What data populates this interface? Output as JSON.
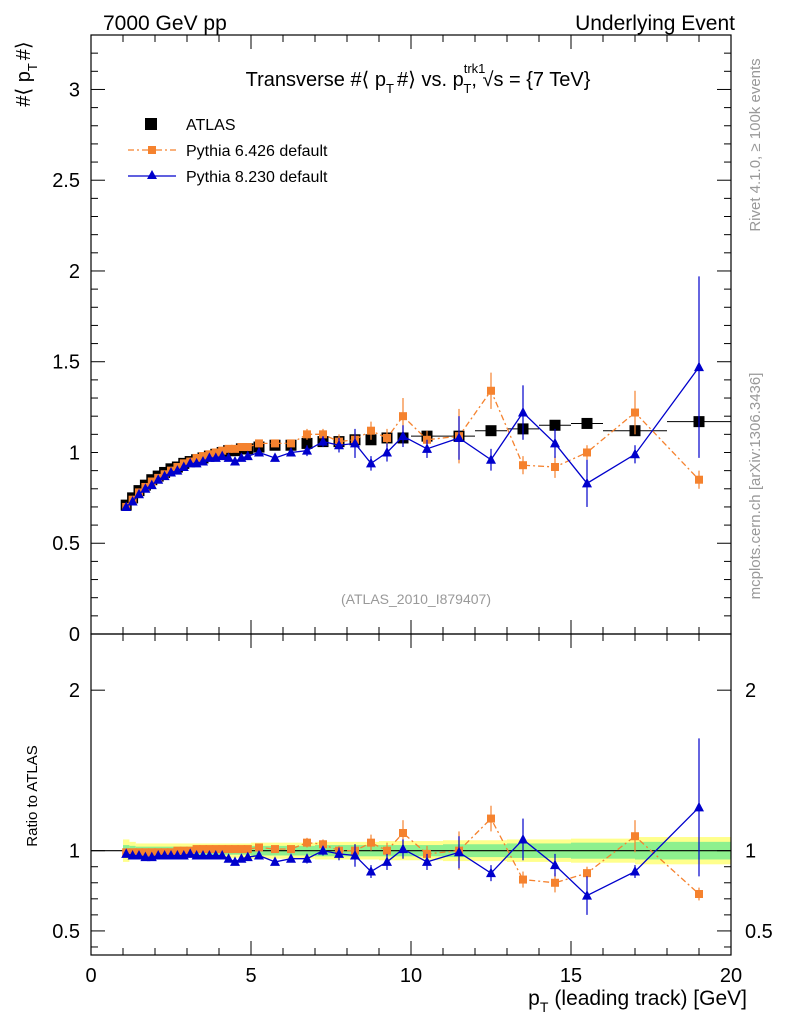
{
  "header": {
    "left": "7000 GeV pp",
    "right": "Underlying Event"
  },
  "side_labels": {
    "rivet": "Rivet 4.1.0, ≥ 100k events",
    "mcplots": "mcplots.cern.ch [arXiv:1306.3436]"
  },
  "colors": {
    "atlas": "#000000",
    "pythia6": "#f5822e",
    "pythia8": "#0000cc",
    "band_inner": "#8ef08e",
    "band_outer": "#ffff8c",
    "axes": "#000000",
    "watermark": "#999999"
  },
  "chart_data": [
    {
      "type": "scatter",
      "panel": "main",
      "title": "Transverse #⟨ p_T #⟩ vs. p_T^trk1, √s = {7 TeV}",
      "title_parts": {
        "a": "Transverse #⟨ p",
        "b": "#⟩ vs. p",
        "c": ", ",
        "d": "s = {7 TeV}",
        "sub": "T",
        "sup": "trk1"
      },
      "ylabel": "#⟨ p_T #⟩",
      "ylabel_parts": {
        "a": "#⟨ p",
        "b": "#⟩",
        "sub": "T"
      },
      "xlim": [
        0,
        20
      ],
      "ylim": [
        0,
        3.3
      ],
      "yticks": [
        0,
        0.5,
        1,
        1.5,
        2,
        2.5,
        3
      ],
      "ytick_labels": [
        "0",
        "0.5",
        "1",
        "1.5",
        "2",
        "2.5",
        "3"
      ],
      "annotation": "(ATLAS_2010_I879407)",
      "legend_position": "top-left",
      "series": [
        {
          "name": "ATLAS",
          "style": "data",
          "x": [
            1.1,
            1.3,
            1.5,
            1.7,
            1.9,
            2.1,
            2.3,
            2.5,
            2.7,
            2.9,
            3.1,
            3.3,
            3.5,
            3.7,
            3.9,
            4.1,
            4.3,
            4.5,
            4.7,
            4.9,
            5.25,
            5.75,
            6.25,
            6.75,
            7.25,
            7.75,
            8.25,
            8.75,
            9.25,
            9.75,
            10.5,
            11.5,
            12.5,
            13.5,
            14.5,
            15.5,
            17.0,
            19.0
          ],
          "y": [
            0.71,
            0.75,
            0.79,
            0.82,
            0.85,
            0.87,
            0.89,
            0.91,
            0.92,
            0.94,
            0.95,
            0.96,
            0.97,
            0.98,
            0.99,
            1.0,
            1.01,
            1.01,
            1.02,
            1.02,
            1.03,
            1.04,
            1.04,
            1.05,
            1.06,
            1.06,
            1.07,
            1.07,
            1.08,
            1.08,
            1.09,
            1.09,
            1.12,
            1.13,
            1.15,
            1.16,
            1.12,
            1.17
          ],
          "xerr": [
            0.1,
            0.1,
            0.1,
            0.1,
            0.1,
            0.1,
            0.1,
            0.1,
            0.1,
            0.1,
            0.1,
            0.1,
            0.1,
            0.1,
            0.1,
            0.1,
            0.1,
            0.1,
            0.1,
            0.1,
            0.25,
            0.25,
            0.25,
            0.25,
            0.25,
            0.25,
            0.25,
            0.25,
            0.25,
            0.25,
            0.5,
            0.5,
            0.5,
            0.5,
            0.5,
            0.5,
            1.0,
            1.0
          ]
        },
        {
          "name": "Pythia 6.426 default",
          "style": "dashdot-square",
          "x": [
            1.1,
            1.3,
            1.5,
            1.7,
            1.9,
            2.1,
            2.3,
            2.5,
            2.7,
            2.9,
            3.1,
            3.3,
            3.5,
            3.7,
            3.9,
            4.1,
            4.3,
            4.5,
            4.7,
            4.9,
            5.25,
            5.75,
            6.25,
            6.75,
            7.25,
            7.75,
            8.25,
            8.75,
            9.25,
            9.75,
            10.5,
            11.5,
            12.5,
            13.5,
            14.5,
            15.5,
            17.0,
            19.0
          ],
          "y": [
            0.7,
            0.74,
            0.78,
            0.81,
            0.84,
            0.86,
            0.88,
            0.9,
            0.92,
            0.94,
            0.95,
            0.97,
            0.98,
            0.99,
            1.0,
            1.01,
            1.02,
            1.02,
            1.03,
            1.03,
            1.05,
            1.05,
            1.05,
            1.1,
            1.1,
            1.06,
            1.07,
            1.12,
            1.08,
            1.2,
            1.07,
            1.09,
            1.34,
            0.93,
            0.92,
            1.0,
            1.22,
            0.85
          ],
          "yerr": [
            0.01,
            0.01,
            0.01,
            0.01,
            0.01,
            0.01,
            0.01,
            0.01,
            0.01,
            0.01,
            0.01,
            0.01,
            0.01,
            0.01,
            0.01,
            0.01,
            0.01,
            0.01,
            0.01,
            0.01,
            0.02,
            0.02,
            0.02,
            0.03,
            0.03,
            0.04,
            0.04,
            0.05,
            0.05,
            0.1,
            0.05,
            0.15,
            0.1,
            0.05,
            0.06,
            0.04,
            0.12,
            0.05
          ]
        },
        {
          "name": "Pythia 8.230 default",
          "style": "solid-triangle",
          "x": [
            1.1,
            1.3,
            1.5,
            1.7,
            1.9,
            2.1,
            2.3,
            2.5,
            2.7,
            2.9,
            3.1,
            3.3,
            3.5,
            3.7,
            3.9,
            4.1,
            4.3,
            4.5,
            4.7,
            4.9,
            5.25,
            5.75,
            6.25,
            6.75,
            7.25,
            7.75,
            8.25,
            8.75,
            9.25,
            9.75,
            10.5,
            11.5,
            12.5,
            13.5,
            14.5,
            15.5,
            17.0,
            19.0
          ],
          "y": [
            0.7,
            0.73,
            0.77,
            0.8,
            0.82,
            0.85,
            0.87,
            0.89,
            0.9,
            0.92,
            0.94,
            0.94,
            0.95,
            0.97,
            0.97,
            0.98,
            0.97,
            0.95,
            0.97,
            0.98,
            1.0,
            0.97,
            1.0,
            1.01,
            1.06,
            1.04,
            1.05,
            0.94,
            1.0,
            1.09,
            1.02,
            1.08,
            0.96,
            1.22,
            1.05,
            0.83,
            0.99,
            1.47
          ],
          "yerr": [
            0.01,
            0.01,
            0.01,
            0.01,
            0.01,
            0.01,
            0.01,
            0.01,
            0.01,
            0.01,
            0.01,
            0.01,
            0.01,
            0.01,
            0.01,
            0.01,
            0.01,
            0.01,
            0.01,
            0.01,
            0.02,
            0.02,
            0.02,
            0.03,
            0.03,
            0.04,
            0.08,
            0.04,
            0.05,
            0.06,
            0.05,
            0.12,
            0.06,
            0.15,
            0.08,
            0.13,
            0.05,
            0.5
          ]
        }
      ]
    },
    {
      "type": "scatter",
      "panel": "ratio",
      "ylabel": "Ratio to ATLAS",
      "xlabel": "p_T (leading track) [GeV]",
      "xlabel_parts": {
        "a": "p",
        "b": "(leading track) [GeV]",
        "sub": "T"
      },
      "xlim": [
        0,
        20
      ],
      "ylim": [
        0.35,
        2.35
      ],
      "xticks": [
        0,
        5,
        10,
        15,
        20
      ],
      "xtick_labels": [
        "0",
        "5",
        "10",
        "15",
        "20"
      ],
      "yticks": [
        0.5,
        1,
        2
      ],
      "ytick_labels": [
        "0.5",
        "1",
        "2"
      ],
      "band": {
        "x_edges": [
          1.0,
          1.2,
          1.4,
          3.0,
          5.0,
          7.0,
          9.0,
          11.0,
          13.0,
          15.0,
          17.0,
          20.0
        ],
        "inner": [
          0.035,
          0.03,
          0.025,
          0.025,
          0.03,
          0.035,
          0.035,
          0.04,
          0.045,
          0.05,
          0.055
        ],
        "outer": [
          0.07,
          0.055,
          0.045,
          0.045,
          0.05,
          0.055,
          0.06,
          0.065,
          0.07,
          0.075,
          0.085
        ]
      },
      "series": [
        {
          "name": "Pythia 6.426 default",
          "style": "dashdot-square",
          "x": [
            1.1,
            1.3,
            1.5,
            1.7,
            1.9,
            2.1,
            2.3,
            2.5,
            2.7,
            2.9,
            3.1,
            3.3,
            3.5,
            3.7,
            3.9,
            4.1,
            4.3,
            4.5,
            4.7,
            4.9,
            5.25,
            5.75,
            6.25,
            6.75,
            7.25,
            7.75,
            8.25,
            8.75,
            9.25,
            9.75,
            10.5,
            11.5,
            12.5,
            13.5,
            14.5,
            15.5,
            17.0,
            19.0
          ],
          "y": [
            0.99,
            0.99,
            0.99,
            0.99,
            0.99,
            0.99,
            0.99,
            0.99,
            1.0,
            1.0,
            1.0,
            1.01,
            1.01,
            1.01,
            1.01,
            1.01,
            1.01,
            1.01,
            1.01,
            1.01,
            1.02,
            1.01,
            1.01,
            1.05,
            1.04,
            1.0,
            1.0,
            1.05,
            1.0,
            1.11,
            0.98,
            1.0,
            1.2,
            0.82,
            0.8,
            0.86,
            1.09,
            0.73
          ],
          "yerr": [
            0.01,
            0.01,
            0.01,
            0.01,
            0.01,
            0.01,
            0.01,
            0.01,
            0.01,
            0.01,
            0.01,
            0.01,
            0.01,
            0.01,
            0.01,
            0.01,
            0.01,
            0.01,
            0.01,
            0.01,
            0.02,
            0.02,
            0.02,
            0.03,
            0.03,
            0.03,
            0.04,
            0.05,
            0.05,
            0.08,
            0.05,
            0.12,
            0.08,
            0.05,
            0.06,
            0.04,
            0.1,
            0.04
          ]
        },
        {
          "name": "Pythia 8.230 default",
          "style": "solid-triangle",
          "x": [
            1.1,
            1.3,
            1.5,
            1.7,
            1.9,
            2.1,
            2.3,
            2.5,
            2.7,
            2.9,
            3.1,
            3.3,
            3.5,
            3.7,
            3.9,
            4.1,
            4.3,
            4.5,
            4.7,
            4.9,
            5.25,
            5.75,
            6.25,
            6.75,
            7.25,
            7.75,
            8.25,
            8.75,
            9.25,
            9.75,
            10.5,
            11.5,
            12.5,
            13.5,
            14.5,
            15.5,
            17.0,
            19.0
          ],
          "y": [
            0.98,
            0.97,
            0.97,
            0.96,
            0.96,
            0.97,
            0.97,
            0.97,
            0.97,
            0.97,
            0.98,
            0.97,
            0.97,
            0.97,
            0.97,
            0.97,
            0.95,
            0.93,
            0.95,
            0.96,
            0.97,
            0.93,
            0.95,
            0.95,
            1.0,
            0.98,
            0.97,
            0.87,
            0.93,
            1.01,
            0.93,
            0.99,
            0.86,
            1.07,
            0.91,
            0.72,
            0.87,
            1.27
          ],
          "yerr": [
            0.01,
            0.01,
            0.01,
            0.01,
            0.01,
            0.01,
            0.01,
            0.01,
            0.01,
            0.01,
            0.01,
            0.01,
            0.01,
            0.01,
            0.01,
            0.01,
            0.01,
            0.01,
            0.01,
            0.01,
            0.02,
            0.02,
            0.02,
            0.03,
            0.03,
            0.04,
            0.07,
            0.04,
            0.05,
            0.06,
            0.05,
            0.1,
            0.05,
            0.13,
            0.07,
            0.12,
            0.04,
            0.43
          ]
        }
      ]
    }
  ]
}
